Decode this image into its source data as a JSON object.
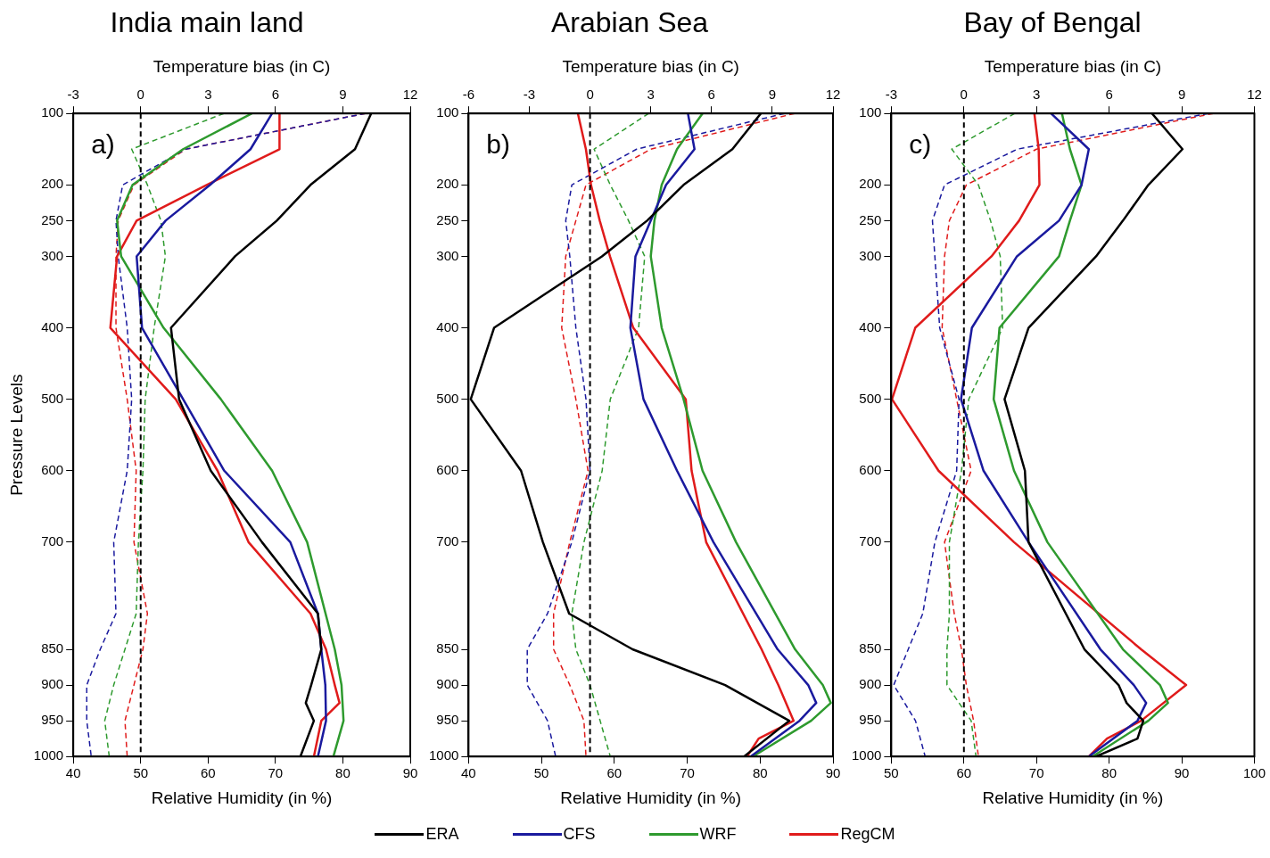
{
  "chart_data": [
    {
      "type": "line",
      "title": "India main land",
      "x2label": "Temperature bias (in C)",
      "xlabel": "Relative Humidity (in %)",
      "ylabel": "Pressure Levels",
      "annotations": [
        "a)"
      ],
      "xlim": [
        40,
        90
      ],
      "xticks": [
        40,
        50,
        60,
        70,
        80,
        90
      ],
      "x2lim": [
        -3,
        12
      ],
      "x2ticks": [
        -3,
        0,
        3,
        6,
        9,
        12
      ],
      "ylim": [
        1000,
        100
      ],
      "yticks": [
        100,
        200,
        250,
        300,
        400,
        500,
        600,
        700,
        850,
        900,
        950,
        1000
      ],
      "grid": false,
      "legend": "bottom",
      "marker": "none",
      "ref_lines": [
        {
          "axis": "x2",
          "value": 0,
          "color": "#000000",
          "line_style": "dashed"
        }
      ],
      "series": [
        {
          "name": "ERA",
          "color": "#000000",
          "line_style": "solid",
          "values": [
            100,
            150,
            200,
            250,
            300,
            400,
            500,
            600,
            700,
            800,
            850,
            900,
            925,
            950,
            1000
          ],
          "x": [
            84.2,
            81.8,
            75.2,
            70.2,
            64,
            54.5,
            55.7,
            60.4,
            68,
            76.3,
            76.8,
            75.3,
            74.5,
            75.7,
            73.7
          ]
        },
        {
          "name": "CFS",
          "color": "#1a1a9e",
          "line_style": "solid",
          "values": [
            100,
            150,
            200,
            250,
            300,
            400,
            500,
            600,
            700,
            800,
            850,
            900,
            950,
            1000
          ],
          "x": [
            69.5,
            66.3,
            60.3,
            53.7,
            49.4,
            50.2,
            56.3,
            62.4,
            72.2,
            76.3,
            76.8,
            77.4,
            77.5,
            76.3
          ]
        },
        {
          "name": "WRF",
          "color": "#2e9a2e",
          "line_style": "solid",
          "values": [
            100,
            150,
            200,
            250,
            300,
            400,
            500,
            600,
            700,
            850,
            900,
            950,
            1000
          ],
          "x": [
            66.5,
            56.3,
            48.8,
            46.5,
            47.1,
            53.4,
            61.9,
            69.5,
            74.7,
            78.8,
            79.8,
            80.1,
            78.6
          ]
        },
        {
          "name": "RegCM",
          "color": "#e01b1b",
          "line_style": "solid",
          "values": [
            100,
            150,
            200,
            250,
            300,
            400,
            500,
            600,
            700,
            800,
            850,
            900,
            925,
            950,
            1000
          ],
          "x": [
            70.6,
            70.6,
            59.8,
            49.4,
            46.5,
            45.5,
            55.2,
            61.4,
            66,
            75.2,
            77.5,
            78.8,
            79.5,
            76.8,
            75.7
          ]
        },
        {
          "color": "#1a1a9e",
          "line_style": "dashed",
          "axis": "x2",
          "values": [
            100,
            150,
            200,
            250,
            300,
            400,
            500,
            600,
            700,
            800,
            850,
            900,
            950,
            1000
          ],
          "x": [
            10,
            2,
            -0.8,
            -1.1,
            -1,
            -0.6,
            -0.4,
            -0.6,
            -1.2,
            -1.1,
            -1.8,
            -2.4,
            -2.4,
            -2.2
          ]
        },
        {
          "color": "#2e9a2e",
          "line_style": "dashed",
          "axis": "x2",
          "values": [
            100,
            150,
            200,
            250,
            300,
            400,
            500,
            600,
            700,
            800,
            850,
            900,
            950,
            1000
          ],
          "x": [
            3.7,
            -0.4,
            0.3,
            0.9,
            1.1,
            0.6,
            0.2,
            0.1,
            -0.1,
            -0.2,
            -0.7,
            -1.2,
            -1.6,
            -1.4
          ]
        },
        {
          "color": "#e01b1b",
          "line_style": "dashed",
          "axis": "x2",
          "values": [
            100,
            150,
            200,
            250,
            300,
            400,
            500,
            600,
            700,
            800,
            850,
            900,
            950,
            1000
          ],
          "x": [
            10,
            2,
            -0.3,
            -1,
            -1.1,
            -1.1,
            -0.6,
            -0.2,
            -0.3,
            0.3,
            0.1,
            -0.3,
            -0.7,
            -0.6
          ]
        }
      ]
    },
    {
      "type": "line",
      "title": "Arabian Sea",
      "x2label": "Temperature bias (in C)",
      "xlabel": "Relative Humidity (in %)",
      "annotations": [
        "b)"
      ],
      "xlim": [
        40,
        90
      ],
      "xticks": [
        40,
        50,
        60,
        70,
        80,
        90
      ],
      "x2lim": [
        -6,
        12
      ],
      "x2ticks": [
        -6,
        -3,
        0,
        3,
        6,
        9,
        12
      ],
      "ylim": [
        1000,
        100
      ],
      "yticks": [
        100,
        200,
        250,
        300,
        400,
        500,
        600,
        700,
        850,
        900,
        950,
        1000
      ],
      "grid": false,
      "marker": "none",
      "ref_lines": [
        {
          "axis": "x2",
          "value": 0,
          "color": "#000000",
          "line_style": "dashed"
        }
      ],
      "series": [
        {
          "color": "#000000",
          "line_style": "solid",
          "values": [
            100,
            150,
            200,
            250,
            300,
            400,
            500,
            600,
            700,
            800,
            850,
            900,
            950,
            1000
          ],
          "x": [
            80.1,
            76.2,
            69.5,
            64.5,
            58.3,
            43.5,
            40.3,
            47.2,
            50.2,
            53.8,
            62.5,
            75.2,
            84,
            77.8
          ]
        },
        {
          "color": "#1a1a9e",
          "line_style": "solid",
          "values": [
            100,
            150,
            200,
            250,
            300,
            400,
            500,
            600,
            700,
            850,
            900,
            925,
            950,
            1000
          ],
          "x": [
            70.1,
            71,
            67.1,
            65,
            62.9,
            62.2,
            64,
            68.6,
            73.6,
            82.4,
            86.6,
            87.7,
            85.4,
            78.7
          ]
        },
        {
          "color": "#2e9a2e",
          "line_style": "solid",
          "values": [
            100,
            150,
            200,
            250,
            300,
            400,
            500,
            600,
            700,
            850,
            900,
            925,
            950,
            1000
          ],
          "x": [
            72.1,
            68.6,
            66.5,
            65.5,
            65,
            66.5,
            69.5,
            72.1,
            76.7,
            84.8,
            88.6,
            89.7,
            87,
            79
          ]
        },
        {
          "color": "#e01b1b",
          "line_style": "solid",
          "values": [
            100,
            150,
            200,
            250,
            300,
            400,
            500,
            600,
            700,
            850,
            900,
            950,
            975,
            1000
          ],
          "x": [
            55,
            56.1,
            56.8,
            58,
            59.4,
            62.6,
            69.8,
            70.6,
            72.6,
            80.2,
            82.5,
            84.6,
            79.8,
            78.2
          ]
        },
        {
          "color": "#1a1a9e",
          "line_style": "dashed",
          "axis": "x2",
          "values": [
            100,
            150,
            200,
            250,
            300,
            400,
            500,
            600,
            700,
            800,
            850,
            900,
            950,
            1000
          ],
          "x": [
            9.6,
            2.3,
            -0.9,
            -1.2,
            -1,
            -0.7,
            -0.2,
            0,
            -0.9,
            -2.1,
            -3.1,
            -3.1,
            -2.1,
            -1.7
          ]
        },
        {
          "color": "#2e9a2e",
          "line_style": "dashed",
          "axis": "x2",
          "values": [
            100,
            150,
            200,
            250,
            300,
            400,
            500,
            600,
            700,
            800,
            850,
            900,
            950,
            1000
          ],
          "x": [
            2.9,
            0.2,
            1,
            1.9,
            2.7,
            2.4,
            1,
            0.6,
            -0.3,
            -0.9,
            -0.7,
            0,
            0.5,
            1
          ]
        },
        {
          "color": "#e01b1b",
          "line_style": "dashed",
          "axis": "x2",
          "values": [
            100,
            150,
            200,
            250,
            300,
            400,
            500,
            600,
            700,
            800,
            850,
            900,
            950,
            1000
          ],
          "x": [
            10.1,
            3,
            -0.2,
            -0.7,
            -1.2,
            -1.4,
            -0.7,
            -0.1,
            -1,
            -1.8,
            -1.8,
            -1,
            -0.3,
            -0.2
          ]
        }
      ]
    },
    {
      "type": "line",
      "title": "Bay of Bengal",
      "x2label": "Temperature bias (in C)",
      "xlabel": "Relative Humidity (in %)",
      "annotations": [
        "c)"
      ],
      "xlim": [
        50,
        100
      ],
      "xticks": [
        50,
        60,
        70,
        80,
        90,
        100
      ],
      "x2lim": [
        -3,
        12
      ],
      "x2ticks": [
        -3,
        0,
        3,
        6,
        9,
        12
      ],
      "ylim": [
        1000,
        100
      ],
      "yticks": [
        100,
        200,
        250,
        300,
        400,
        500,
        600,
        700,
        850,
        900,
        950,
        1000
      ],
      "grid": false,
      "marker": "none",
      "ref_lines": [
        {
          "axis": "x2",
          "value": 0,
          "color": "#000000",
          "line_style": "dashed"
        }
      ],
      "series": [
        {
          "color": "#000000",
          "line_style": "solid",
          "values": [
            100,
            150,
            200,
            250,
            300,
            400,
            500,
            600,
            700,
            850,
            900,
            925,
            950,
            975,
            1000
          ],
          "x": [
            85.9,
            90.1,
            85.4,
            81.9,
            78.2,
            68.9,
            65.6,
            68.4,
            68.9,
            76.6,
            81.3,
            82.4,
            84.7,
            83.9,
            78.2
          ]
        },
        {
          "color": "#1a1a9e",
          "line_style": "solid",
          "values": [
            100,
            150,
            200,
            250,
            300,
            400,
            500,
            600,
            700,
            850,
            900,
            925,
            950,
            1000
          ],
          "x": [
            72,
            77.2,
            76.2,
            73.1,
            67.3,
            61.1,
            59.6,
            62.7,
            68.9,
            78.8,
            83.4,
            85.1,
            83.9,
            77.2
          ]
        },
        {
          "color": "#2e9a2e",
          "line_style": "solid",
          "values": [
            100,
            150,
            200,
            250,
            300,
            400,
            500,
            600,
            700,
            850,
            900,
            925,
            950,
            1000
          ],
          "x": [
            73.5,
            74.6,
            76.2,
            74.6,
            73.1,
            64.9,
            64.1,
            66.9,
            71.5,
            81.9,
            87,
            88.1,
            85.4,
            77.7
          ]
        },
        {
          "color": "#e01b1b",
          "line_style": "solid",
          "values": [
            100,
            150,
            200,
            250,
            300,
            400,
            500,
            600,
            700,
            850,
            900,
            950,
            975,
            1000
          ],
          "x": [
            69.7,
            70.3,
            70.4,
            67.6,
            63.8,
            53.3,
            50.1,
            56.5,
            66.9,
            84.4,
            90.6,
            84.4,
            79.7,
            77.2
          ]
        },
        {
          "color": "#1a1a9e",
          "line_style": "dashed",
          "axis": "x2",
          "values": [
            100,
            150,
            200,
            250,
            300,
            400,
            500,
            600,
            700,
            800,
            850,
            900,
            950,
            1000
          ],
          "x": [
            10.1,
            2.2,
            -0.8,
            -1.3,
            -1.2,
            -1,
            -0.2,
            -0.3,
            -1.2,
            -1.7,
            -2.3,
            -2.9,
            -2,
            -1.6
          ]
        },
        {
          "color": "#2e9a2e",
          "line_style": "dashed",
          "axis": "x2",
          "values": [
            100,
            150,
            200,
            250,
            300,
            400,
            500,
            600,
            700,
            800,
            850,
            900,
            950,
            1000
          ],
          "x": [
            2.1,
            -0.5,
            0.6,
            1.1,
            1.5,
            1.6,
            0.2,
            -0.1,
            -0.6,
            -0.6,
            -0.7,
            -0.7,
            0.3,
            0.5
          ]
        },
        {
          "color": "#e01b1b",
          "line_style": "dashed",
          "axis": "x2",
          "values": [
            100,
            150,
            200,
            250,
            300,
            400,
            500,
            600,
            700,
            800,
            850,
            900,
            950,
            1000
          ],
          "x": [
            10.3,
            3,
            0.1,
            -0.6,
            -0.8,
            -0.9,
            -0.3,
            0.3,
            -0.8,
            -0.4,
            -0.1,
            0.1,
            0.4,
            0.6
          ]
        }
      ]
    }
  ]
}
